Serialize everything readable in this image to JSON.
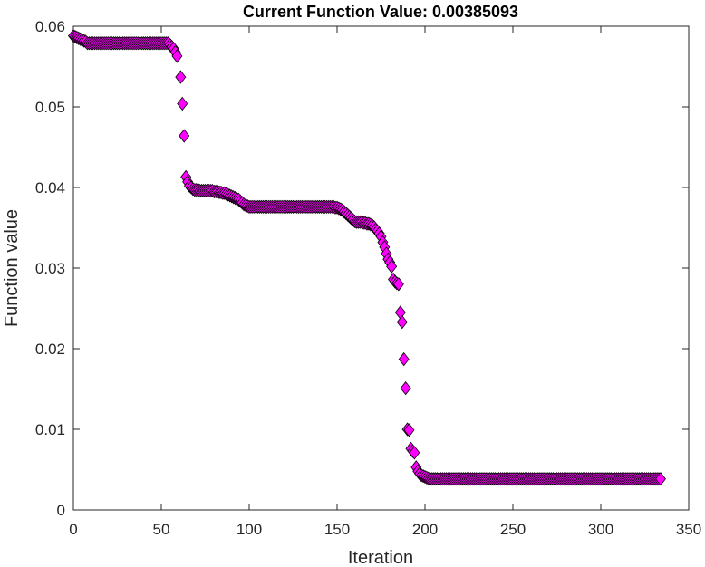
{
  "chart_data": {
    "type": "scatter",
    "title": "Current Function Value: 0.00385093",
    "xlabel": "Iteration",
    "ylabel": "Function value",
    "xlim": [
      0,
      350
    ],
    "ylim": [
      0,
      0.06
    ],
    "xticks": [
      "0",
      "50",
      "100",
      "150",
      "200",
      "250",
      "300",
      "350"
    ],
    "yticks": [
      "0",
      "0.01",
      "0.02",
      "0.03",
      "0.04",
      "0.05",
      "0.06"
    ],
    "grid": false,
    "marker": "diamond",
    "marker_color": "#ff00ff",
    "marker_edge_color": "#000000",
    "segments": [
      {
        "from": 0,
        "to": 8,
        "start": 0.0588,
        "end": 0.058
      },
      {
        "from": 8,
        "to": 55,
        "start": 0.0579,
        "end": 0.0579
      },
      {
        "from": 55,
        "to": 58,
        "start": 0.0577,
        "end": 0.057
      },
      {
        "from": 58,
        "to": 60,
        "start": 0.0568,
        "end": 0.0558
      }
    ],
    "points": [
      [
        61,
        0.0537
      ],
      [
        62,
        0.0504
      ],
      [
        63,
        0.0464
      ],
      [
        64,
        0.0413
      ],
      [
        65,
        0.0407
      ],
      [
        66,
        0.0402
      ],
      [
        67,
        0.04
      ],
      [
        68,
        0.0398
      ],
      [
        69,
        0.0397
      ],
      [
        70,
        0.0397
      ],
      [
        71,
        0.0397
      ],
      [
        72,
        0.0396
      ],
      [
        73,
        0.0396
      ],
      [
        74,
        0.0396
      ],
      [
        75,
        0.0396
      ],
      [
        76,
        0.0396
      ],
      [
        77,
        0.0396
      ],
      [
        78,
        0.0396
      ],
      [
        79,
        0.0396
      ],
      [
        80,
        0.0395
      ],
      [
        81,
        0.0395
      ],
      [
        82,
        0.0395
      ],
      [
        83,
        0.0394
      ],
      [
        84,
        0.0394
      ],
      [
        85,
        0.0393
      ],
      [
        86,
        0.0393
      ],
      [
        87,
        0.0392
      ],
      [
        88,
        0.0391
      ],
      [
        89,
        0.039
      ],
      [
        90,
        0.0389
      ],
      [
        91,
        0.0388
      ],
      [
        92,
        0.0387
      ],
      [
        93,
        0.0386
      ],
      [
        94,
        0.0385
      ],
      [
        95,
        0.0383
      ],
      [
        96,
        0.0381
      ],
      [
        97,
        0.0379
      ],
      [
        98,
        0.0378
      ],
      [
        99,
        0.0377
      ],
      [
        100,
        0.0376
      ],
      [
        101,
        0.0376
      ],
      [
        102,
        0.0376
      ],
      [
        103,
        0.0376
      ],
      [
        104,
        0.0376
      ],
      [
        105,
        0.0376
      ],
      [
        106,
        0.0376
      ],
      [
        107,
        0.0376
      ],
      [
        108,
        0.0376
      ],
      [
        109,
        0.0376
      ],
      [
        110,
        0.0376
      ],
      [
        111,
        0.0376
      ],
      [
        112,
        0.0376
      ],
      [
        113,
        0.0376
      ],
      [
        114,
        0.0376
      ],
      [
        115,
        0.0376
      ],
      [
        116,
        0.0376
      ],
      [
        117,
        0.0376
      ],
      [
        118,
        0.0376
      ],
      [
        119,
        0.0376
      ],
      [
        120,
        0.0376
      ],
      [
        121,
        0.0376
      ],
      [
        122,
        0.0376
      ],
      [
        123,
        0.0376
      ],
      [
        124,
        0.0376
      ],
      [
        125,
        0.0376
      ],
      [
        126,
        0.0376
      ],
      [
        127,
        0.0376
      ],
      [
        128,
        0.0376
      ],
      [
        129,
        0.0376
      ],
      [
        130,
        0.0376
      ],
      [
        131,
        0.0376
      ],
      [
        132,
        0.0376
      ],
      [
        133,
        0.0376
      ],
      [
        134,
        0.0376
      ],
      [
        135,
        0.0376
      ],
      [
        136,
        0.0376
      ],
      [
        137,
        0.0376
      ],
      [
        138,
        0.0376
      ],
      [
        139,
        0.0376
      ],
      [
        140,
        0.0376
      ],
      [
        141,
        0.0376
      ],
      [
        142,
        0.0376
      ],
      [
        143,
        0.0376
      ],
      [
        144,
        0.0376
      ],
      [
        145,
        0.0376
      ],
      [
        146,
        0.0376
      ],
      [
        147,
        0.0376
      ],
      [
        148,
        0.0376
      ],
      [
        149,
        0.0375
      ],
      [
        150,
        0.0375
      ],
      [
        151,
        0.0374
      ],
      [
        152,
        0.0373
      ],
      [
        153,
        0.0372
      ],
      [
        154,
        0.037
      ],
      [
        155,
        0.0368
      ],
      [
        156,
        0.0366
      ],
      [
        157,
        0.0364
      ],
      [
        158,
        0.0362
      ],
      [
        159,
        0.036
      ],
      [
        160,
        0.0358
      ],
      [
        161,
        0.0357
      ],
      [
        162,
        0.0357
      ],
      [
        163,
        0.0357
      ],
      [
        164,
        0.0357
      ],
      [
        165,
        0.0356
      ],
      [
        166,
        0.0356
      ],
      [
        167,
        0.0355
      ],
      [
        168,
        0.0355
      ],
      [
        169,
        0.0354
      ],
      [
        170,
        0.0353
      ],
      [
        171,
        0.0351
      ],
      [
        172,
        0.0348
      ],
      [
        173,
        0.0346
      ],
      [
        174,
        0.0343
      ],
      [
        175,
        0.0339
      ],
      [
        176,
        0.0332
      ],
      [
        177,
        0.0326
      ],
      [
        178,
        0.0318
      ],
      [
        179,
        0.0311
      ],
      [
        180,
        0.0307
      ],
      [
        181,
        0.0302
      ],
      [
        182,
        0.0286
      ],
      [
        183,
        0.0283
      ],
      [
        184,
        0.0281
      ],
      [
        185,
        0.028
      ],
      [
        186,
        0.0245
      ],
      [
        187,
        0.0233
      ],
      [
        188,
        0.0187
      ],
      [
        189,
        0.0151
      ],
      [
        190,
        0.01
      ],
      [
        191,
        0.0099
      ],
      [
        192,
        0.0076
      ],
      [
        193,
        0.0073
      ],
      [
        194,
        0.0071
      ],
      [
        195,
        0.0053
      ],
      [
        196,
        0.0048
      ],
      [
        197,
        0.0045
      ],
      [
        198,
        0.0043
      ],
      [
        199,
        0.0042
      ],
      [
        200,
        0.0041
      ],
      [
        201,
        0.004
      ],
      [
        202,
        0.0039
      ]
    ],
    "tail": {
      "from": 203,
      "to": 334,
      "value": 0.00385
    }
  }
}
